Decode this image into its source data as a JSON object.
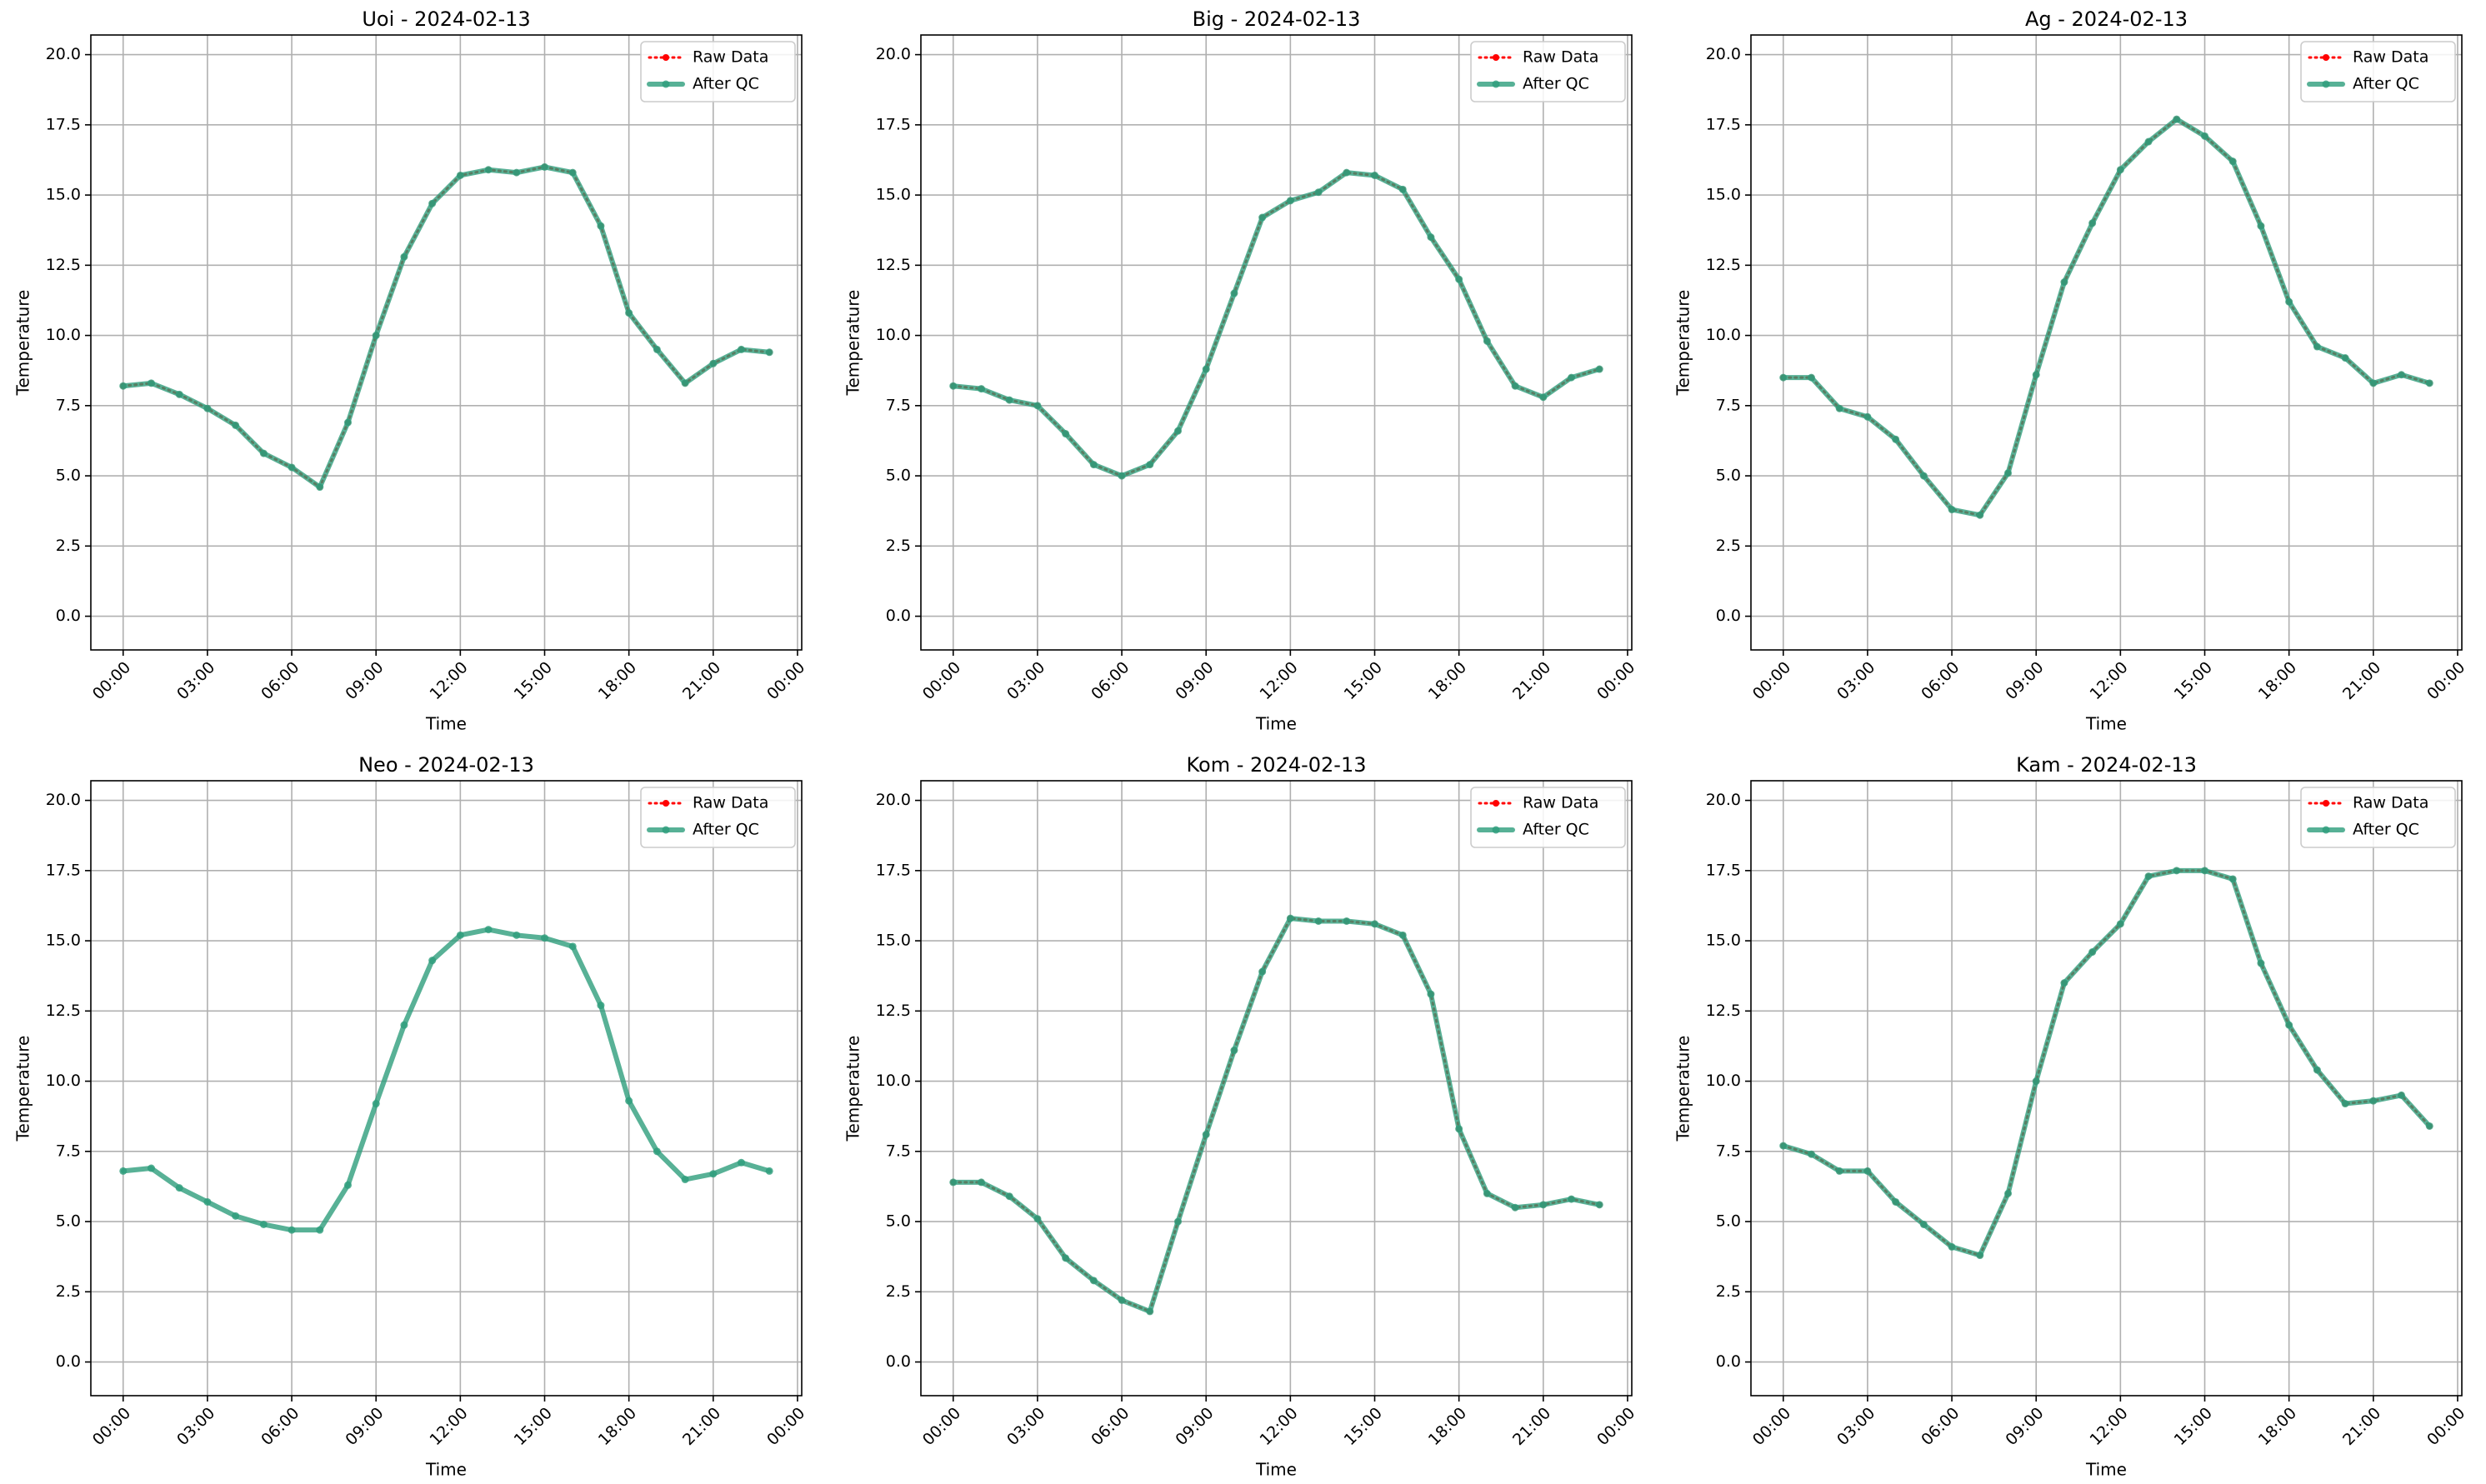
{
  "chart_data": [
    {
      "type": "line",
      "title": "Uoi - 2024-02-13",
      "xlabel": "Time",
      "ylabel": "Temperature",
      "grid": true,
      "legend": "upper right",
      "x": [
        0,
        1,
        2,
        3,
        4,
        5,
        6,
        7,
        8,
        9,
        10,
        11,
        12,
        13,
        14,
        15,
        16,
        17,
        18,
        19,
        20,
        21,
        22,
        23
      ],
      "xlim": [
        -1.15,
        24.15
      ],
      "xticks": [
        {
          "value": 0,
          "label": "00:00"
        },
        {
          "value": 3,
          "label": "03:00"
        },
        {
          "value": 6,
          "label": "06:00"
        },
        {
          "value": 9,
          "label": "09:00"
        },
        {
          "value": 12,
          "label": "12:00"
        },
        {
          "value": 15,
          "label": "15:00"
        },
        {
          "value": 18,
          "label": "18:00"
        },
        {
          "value": 21,
          "label": "21:00"
        },
        {
          "value": 24,
          "label": "00:00"
        }
      ],
      "ylim": [
        -1.2,
        20.7
      ],
      "yticks": [
        {
          "value": 0,
          "label": "0.0"
        },
        2.5,
        {
          "value": 5,
          "label": "5.0"
        },
        7.5,
        {
          "value": 10,
          "label": "10.0"
        },
        12.5,
        {
          "value": 15,
          "label": "15.0"
        },
        17.5,
        {
          "value": 20,
          "label": "20.0"
        }
      ],
      "series": [
        {
          "name": "Raw Data",
          "color": "#ff0000",
          "values": [
            8.2,
            8.3,
            7.9,
            7.4,
            6.8,
            5.8,
            5.3,
            4.6,
            6.9,
            10.0,
            12.8,
            14.7,
            15.7,
            15.9,
            15.8,
            16.0,
            15.8,
            13.9,
            10.8,
            9.5,
            8.3,
            9.0,
            9.5,
            9.4
          ]
        },
        {
          "name": "After QC",
          "color": "#2e9e7c",
          "values": [
            8.2,
            8.3,
            7.9,
            7.4,
            6.8,
            5.8,
            5.3,
            4.6,
            6.9,
            10.0,
            12.8,
            14.7,
            15.7,
            15.9,
            15.8,
            16.0,
            15.8,
            13.9,
            10.8,
            9.5,
            8.3,
            9.0,
            9.5,
            9.4
          ]
        }
      ]
    },
    {
      "type": "line",
      "title": "Big - 2024-02-13",
      "xlabel": "Time",
      "ylabel": "Temperature",
      "grid": true,
      "legend": "upper right",
      "x": [
        0,
        1,
        2,
        3,
        4,
        5,
        6,
        7,
        8,
        9,
        10,
        11,
        12,
        13,
        14,
        15,
        16,
        17,
        18,
        19,
        20,
        21,
        22,
        23
      ],
      "xlim": [
        -1.15,
        24.15
      ],
      "xticks": [
        {
          "value": 0,
          "label": "00:00"
        },
        {
          "value": 3,
          "label": "03:00"
        },
        {
          "value": 6,
          "label": "06:00"
        },
        {
          "value": 9,
          "label": "09:00"
        },
        {
          "value": 12,
          "label": "12:00"
        },
        {
          "value": 15,
          "label": "15:00"
        },
        {
          "value": 18,
          "label": "18:00"
        },
        {
          "value": 21,
          "label": "21:00"
        },
        {
          "value": 24,
          "label": "00:00"
        }
      ],
      "ylim": [
        -1.2,
        20.7
      ],
      "yticks": [
        {
          "value": 0,
          "label": "0.0"
        },
        2.5,
        {
          "value": 5,
          "label": "5.0"
        },
        7.5,
        {
          "value": 10,
          "label": "10.0"
        },
        12.5,
        {
          "value": 15,
          "label": "15.0"
        },
        17.5,
        {
          "value": 20,
          "label": "20.0"
        }
      ],
      "series": [
        {
          "name": "Raw Data",
          "color": "#ff0000",
          "values": [
            8.2,
            8.1,
            7.7,
            7.5,
            6.5,
            5.4,
            5.0,
            5.4,
            6.6,
            8.8,
            11.5,
            14.2,
            14.8,
            15.1,
            15.8,
            15.7,
            15.2,
            13.5,
            12.0,
            9.8,
            8.2,
            7.8,
            8.5,
            8.8
          ]
        },
        {
          "name": "After QC",
          "color": "#2e9e7c",
          "values": [
            8.2,
            8.1,
            7.7,
            7.5,
            6.5,
            5.4,
            5.0,
            5.4,
            6.6,
            8.8,
            11.5,
            14.2,
            14.8,
            15.1,
            15.8,
            15.7,
            15.2,
            13.5,
            12.0,
            9.8,
            8.2,
            7.8,
            8.5,
            8.8
          ]
        }
      ]
    },
    {
      "type": "line",
      "title": "Ag - 2024-02-13",
      "xlabel": "Time",
      "ylabel": "Temperature",
      "grid": true,
      "legend": "upper right",
      "x": [
        0,
        1,
        2,
        3,
        4,
        5,
        6,
        7,
        8,
        9,
        10,
        11,
        12,
        13,
        14,
        15,
        16,
        17,
        18,
        19,
        20,
        21,
        22,
        23
      ],
      "xlim": [
        -1.15,
        24.15
      ],
      "xticks": [
        {
          "value": 0,
          "label": "00:00"
        },
        {
          "value": 3,
          "label": "03:00"
        },
        {
          "value": 6,
          "label": "06:00"
        },
        {
          "value": 9,
          "label": "09:00"
        },
        {
          "value": 12,
          "label": "12:00"
        },
        {
          "value": 15,
          "label": "15:00"
        },
        {
          "value": 18,
          "label": "18:00"
        },
        {
          "value": 21,
          "label": "21:00"
        },
        {
          "value": 24,
          "label": "00:00"
        }
      ],
      "ylim": [
        -1.2,
        20.7
      ],
      "yticks": [
        {
          "value": 0,
          "label": "0.0"
        },
        2.5,
        {
          "value": 5,
          "label": "5.0"
        },
        7.5,
        {
          "value": 10,
          "label": "10.0"
        },
        12.5,
        {
          "value": 15,
          "label": "15.0"
        },
        17.5,
        {
          "value": 20,
          "label": "20.0"
        }
      ],
      "series": [
        {
          "name": "Raw Data",
          "color": "#ff0000",
          "values": [
            8.5,
            8.5,
            7.4,
            7.1,
            6.3,
            5.0,
            3.8,
            3.6,
            5.1,
            8.6,
            11.9,
            14.0,
            15.9,
            16.9,
            17.7,
            17.1,
            16.2,
            13.9,
            11.2,
            9.6,
            9.2,
            8.3,
            8.6,
            8.3
          ]
        },
        {
          "name": "After QC",
          "color": "#2e9e7c",
          "values": [
            8.5,
            8.5,
            7.4,
            7.1,
            6.3,
            5.0,
            3.8,
            3.6,
            5.1,
            8.6,
            11.9,
            14.0,
            15.9,
            16.9,
            17.7,
            17.1,
            16.2,
            13.9,
            11.2,
            9.6,
            9.2,
            8.3,
            8.6,
            8.3
          ]
        }
      ]
    },
    {
      "type": "line",
      "title": "Neo - 2024-02-13",
      "xlabel": "Time",
      "ylabel": "Temperature",
      "grid": true,
      "legend": "upper right",
      "x": [
        0,
        1,
        2,
        3,
        4,
        5,
        6,
        7,
        8,
        9,
        10,
        11,
        12,
        13,
        14,
        15,
        16,
        17,
        18,
        19,
        20,
        21,
        22,
        23
      ],
      "xlim": [
        -1.15,
        24.15
      ],
      "xticks": [
        {
          "value": 0,
          "label": "00:00"
        },
        {
          "value": 3,
          "label": "03:00"
        },
        {
          "value": 6,
          "label": "06:00"
        },
        {
          "value": 9,
          "label": "09:00"
        },
        {
          "value": 12,
          "label": "12:00"
        },
        {
          "value": 15,
          "label": "15:00"
        },
        {
          "value": 18,
          "label": "18:00"
        },
        {
          "value": 21,
          "label": "21:00"
        },
        {
          "value": 24,
          "label": "00:00"
        }
      ],
      "ylim": [
        -1.2,
        20.7
      ],
      "yticks": [
        {
          "value": 0,
          "label": "0.0"
        },
        2.5,
        {
          "value": 5,
          "label": "5.0"
        },
        7.5,
        {
          "value": 10,
          "label": "10.0"
        },
        12.5,
        {
          "value": 15,
          "label": "15.0"
        },
        17.5,
        {
          "value": 20,
          "label": "20.0"
        }
      ],
      "series": [
        {
          "name": "Raw Data",
          "color": "#ff0000",
          "values": [
            null,
            null,
            null,
            null,
            null,
            null,
            null,
            null,
            null,
            null,
            null,
            null,
            null,
            null,
            null,
            null,
            null,
            null,
            null,
            null,
            null,
            null,
            null,
            null
          ]
        },
        {
          "name": "After QC",
          "color": "#2e9e7c",
          "values": [
            6.8,
            6.9,
            6.2,
            5.7,
            5.2,
            4.9,
            4.7,
            4.7,
            6.3,
            9.2,
            12.0,
            14.3,
            15.2,
            15.4,
            15.2,
            15.1,
            14.8,
            12.7,
            9.3,
            7.5,
            6.5,
            6.7,
            7.1,
            6.8
          ]
        }
      ]
    },
    {
      "type": "line",
      "title": "Kom - 2024-02-13",
      "xlabel": "Time",
      "ylabel": "Temperature",
      "grid": true,
      "legend": "upper right",
      "x": [
        0,
        1,
        2,
        3,
        4,
        5,
        6,
        7,
        8,
        9,
        10,
        11,
        12,
        13,
        14,
        15,
        16,
        17,
        18,
        19,
        20,
        21,
        22,
        23
      ],
      "xlim": [
        -1.15,
        24.15
      ],
      "xticks": [
        {
          "value": 0,
          "label": "00:00"
        },
        {
          "value": 3,
          "label": "03:00"
        },
        {
          "value": 6,
          "label": "06:00"
        },
        {
          "value": 9,
          "label": "09:00"
        },
        {
          "value": 12,
          "label": "12:00"
        },
        {
          "value": 15,
          "label": "15:00"
        },
        {
          "value": 18,
          "label": "18:00"
        },
        {
          "value": 21,
          "label": "21:00"
        },
        {
          "value": 24,
          "label": "00:00"
        }
      ],
      "ylim": [
        -1.2,
        20.7
      ],
      "yticks": [
        {
          "value": 0,
          "label": "0.0"
        },
        2.5,
        {
          "value": 5,
          "label": "5.0"
        },
        7.5,
        {
          "value": 10,
          "label": "10.0"
        },
        12.5,
        {
          "value": 15,
          "label": "15.0"
        },
        17.5,
        {
          "value": 20,
          "label": "20.0"
        }
      ],
      "series": [
        {
          "name": "Raw Data",
          "color": "#ff0000",
          "values": [
            6.4,
            6.4,
            5.9,
            5.1,
            3.7,
            2.9,
            2.2,
            1.8,
            5.0,
            8.1,
            11.1,
            13.9,
            15.8,
            15.7,
            15.7,
            15.6,
            15.2,
            13.1,
            8.3,
            6.0,
            5.5,
            5.6,
            5.8,
            5.6
          ]
        },
        {
          "name": "After QC",
          "color": "#2e9e7c",
          "values": [
            6.4,
            6.4,
            5.9,
            5.1,
            3.7,
            2.9,
            2.2,
            1.8,
            5.0,
            8.1,
            11.1,
            13.9,
            15.8,
            15.7,
            15.7,
            15.6,
            15.2,
            13.1,
            8.3,
            6.0,
            5.5,
            5.6,
            5.8,
            5.6
          ]
        }
      ]
    },
    {
      "type": "line",
      "title": "Kam - 2024-02-13",
      "xlabel": "Time",
      "ylabel": "Temperature",
      "grid": true,
      "legend": "upper right",
      "x": [
        0,
        1,
        2,
        3,
        4,
        5,
        6,
        7,
        8,
        9,
        10,
        11,
        12,
        13,
        14,
        15,
        16,
        17,
        18,
        19,
        20,
        21,
        22,
        23
      ],
      "xlim": [
        -1.15,
        24.15
      ],
      "xticks": [
        {
          "value": 0,
          "label": "00:00"
        },
        {
          "value": 3,
          "label": "03:00"
        },
        {
          "value": 6,
          "label": "06:00"
        },
        {
          "value": 9,
          "label": "09:00"
        },
        {
          "value": 12,
          "label": "12:00"
        },
        {
          "value": 15,
          "label": "15:00"
        },
        {
          "value": 18,
          "label": "18:00"
        },
        {
          "value": 21,
          "label": "21:00"
        },
        {
          "value": 24,
          "label": "00:00"
        }
      ],
      "ylim": [
        -1.2,
        20.7
      ],
      "yticks": [
        {
          "value": 0,
          "label": "0.0"
        },
        2.5,
        {
          "value": 5,
          "label": "5.0"
        },
        7.5,
        {
          "value": 10,
          "label": "10.0"
        },
        12.5,
        {
          "value": 15,
          "label": "15.0"
        },
        17.5,
        {
          "value": 20,
          "label": "20.0"
        }
      ],
      "series": [
        {
          "name": "Raw Data",
          "color": "#ff0000",
          "values": [
            7.7,
            7.4,
            6.8,
            6.8,
            5.7,
            4.9,
            4.1,
            3.8,
            6.0,
            10.0,
            13.5,
            14.6,
            15.6,
            17.3,
            17.5,
            17.5,
            17.2,
            14.2,
            12.0,
            10.4,
            9.2,
            9.3,
            9.5,
            8.4
          ]
        },
        {
          "name": "After QC",
          "color": "#2e9e7c",
          "values": [
            7.7,
            7.4,
            6.8,
            6.8,
            5.7,
            4.9,
            4.1,
            3.8,
            6.0,
            10.0,
            13.5,
            14.6,
            15.6,
            17.3,
            17.5,
            17.5,
            17.2,
            14.2,
            12.0,
            10.4,
            9.2,
            9.3,
            9.5,
            8.4
          ]
        }
      ]
    }
  ]
}
